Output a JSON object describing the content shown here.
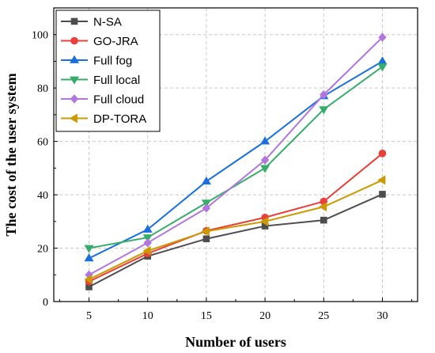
{
  "chart_data": {
    "type": "line",
    "xlabel": "Number of users",
    "ylabel": "The cost of the user system",
    "x": [
      5,
      10,
      15,
      20,
      25,
      30
    ],
    "xlim": [
      2,
      33
    ],
    "ylim": [
      0,
      110
    ],
    "xticks": [
      "5",
      "10",
      "15",
      "20",
      "25",
      "30"
    ],
    "yticks": [
      "0",
      "20",
      "40",
      "60",
      "80",
      "100"
    ],
    "grid": true,
    "legend_position": "top-left",
    "series": [
      {
        "name": "N-SA",
        "color": "#4d4d4d",
        "marker": "square",
        "values": [
          5.5,
          17,
          23.5,
          28.3,
          30.5,
          40.2
        ]
      },
      {
        "name": "GO-JRA",
        "color": "#e8403a",
        "marker": "circle",
        "values": [
          7.5,
          18,
          26.5,
          31.5,
          37.5,
          55.5
        ]
      },
      {
        "name": "Full fog",
        "color": "#1a6fdf",
        "marker": "triangle-up",
        "values": [
          16.2,
          27,
          45,
          60,
          77,
          90
        ]
      },
      {
        "name": "Full local",
        "color": "#37ad6b",
        "marker": "triangle-down",
        "values": [
          20,
          24,
          37,
          50,
          72,
          88
        ]
      },
      {
        "name": "Full cloud",
        "color": "#b177de",
        "marker": "diamond",
        "values": [
          10,
          22,
          35,
          53,
          77.5,
          99
        ]
      },
      {
        "name": "DP-TORA",
        "color": "#cc9900",
        "marker": "triangle-left",
        "values": [
          8.3,
          19,
          26.3,
          30,
          35.5,
          45.5
        ]
      }
    ]
  }
}
